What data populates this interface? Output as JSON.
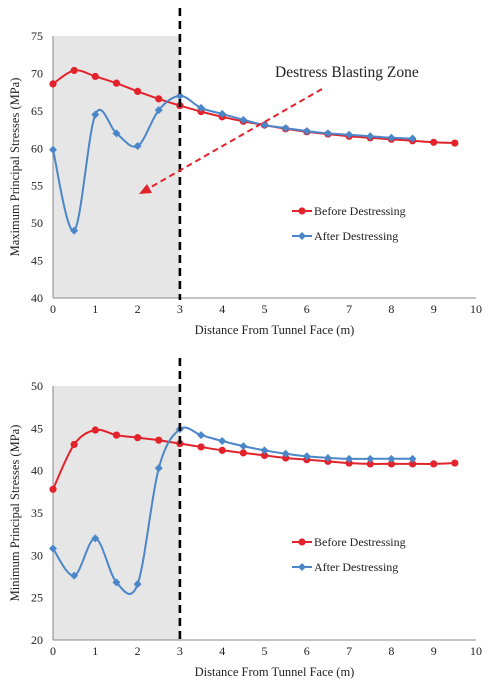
{
  "colors": {
    "before": "#e3232c",
    "after": "#4a86c8",
    "shade": "#e6e6e6",
    "arrow": "#e3232c",
    "divider": "#000000",
    "axis": "#888888"
  },
  "chart_data": [
    {
      "type": "line",
      "title": "",
      "xlabel": "Distance From Tunnel Face (m)",
      "ylabel": "Maximum Principal Stresses (MPa)",
      "xlim": [
        0,
        10
      ],
      "ylim": [
        40,
        75
      ],
      "xticks": [
        0,
        1,
        2,
        3,
        4,
        5,
        6,
        7,
        8,
        9,
        10
      ],
      "yticks": [
        40,
        45,
        50,
        55,
        60,
        65,
        70,
        75
      ],
      "grid": false,
      "legend_position": "middle-right",
      "shaded_range": [
        0,
        3
      ],
      "divider_x": 3,
      "annotation": "Destress Blasting Zone",
      "series": [
        {
          "name": "Before Destressing",
          "marker": "circle",
          "x": [
            0,
            0.5,
            1,
            1.5,
            2,
            2.5,
            3,
            3.5,
            4,
            4.5,
            5,
            5.5,
            6,
            6.5,
            7,
            7.5,
            8,
            8.5,
            9,
            9.5
          ],
          "y": [
            68.6,
            70.4,
            69.6,
            68.7,
            67.6,
            66.6,
            65.7,
            64.9,
            64.2,
            63.6,
            63.1,
            62.6,
            62.2,
            61.9,
            61.6,
            61.4,
            61.2,
            61.0,
            60.8,
            60.7
          ]
        },
        {
          "name": "After Destressing",
          "marker": "diamond",
          "x": [
            0,
            0.5,
            1,
            1.5,
            2,
            2.5,
            3,
            3.5,
            4,
            4.5,
            5,
            5.5,
            6,
            6.5,
            7,
            7.5,
            8,
            8.5
          ],
          "y": [
            59.8,
            49.0,
            64.5,
            62.0,
            60.3,
            65.1,
            67.0,
            65.4,
            64.6,
            63.8,
            63.1,
            62.7,
            62.3,
            62.0,
            61.8,
            61.6,
            61.4,
            61.3
          ]
        }
      ]
    },
    {
      "type": "line",
      "title": "",
      "xlabel": "Distance From Tunnel Face (m)",
      "ylabel": "Minimum Principal Stresses (MPa)",
      "xlim": [
        0,
        10
      ],
      "ylim": [
        20,
        50
      ],
      "xticks": [
        0,
        1,
        2,
        3,
        4,
        5,
        6,
        7,
        8,
        9,
        10
      ],
      "yticks": [
        20,
        25,
        30,
        35,
        40,
        45,
        50
      ],
      "grid": false,
      "legend_position": "bottom-right",
      "shaded_range": [
        0,
        3
      ],
      "divider_x": 3,
      "series": [
        {
          "name": "Before Destressing",
          "marker": "circle",
          "x": [
            0,
            0.5,
            1,
            1.5,
            2,
            2.5,
            3,
            3.5,
            4,
            4.5,
            5,
            5.5,
            6,
            6.5,
            7,
            7.5,
            8,
            8.5,
            9,
            9.5
          ],
          "y": [
            37.8,
            43.1,
            44.8,
            44.2,
            43.9,
            43.6,
            43.2,
            42.8,
            42.4,
            42.1,
            41.8,
            41.5,
            41.3,
            41.1,
            40.9,
            40.8,
            40.8,
            40.8,
            40.8,
            40.9
          ]
        },
        {
          "name": "After Destressing",
          "marker": "diamond",
          "x": [
            0,
            0.5,
            1,
            1.5,
            2,
            2.5,
            3,
            3.5,
            4,
            4.5,
            5,
            5.5,
            6,
            6.5,
            7,
            7.5,
            8,
            8.5
          ],
          "y": [
            30.8,
            27.6,
            32.0,
            26.8,
            26.6,
            40.3,
            44.9,
            44.2,
            43.5,
            42.9,
            42.4,
            42.0,
            41.7,
            41.5,
            41.4,
            41.4,
            41.4,
            41.4
          ]
        }
      ]
    }
  ]
}
